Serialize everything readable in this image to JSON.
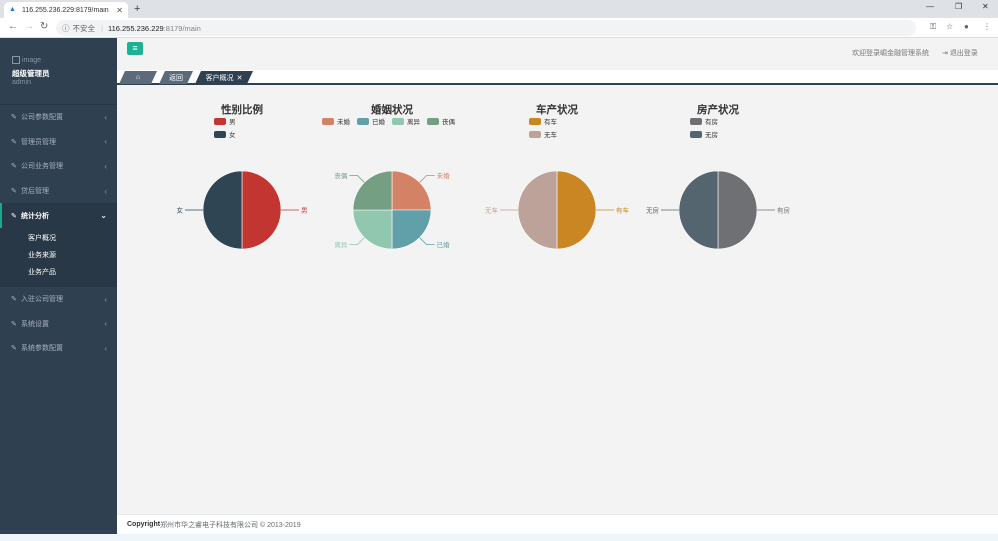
{
  "browser": {
    "tab_title": "116.255.236.229:8179/main",
    "tab_favicon": "warning-triangle-icon",
    "new_tab": "+",
    "security_text": "不安全",
    "address_host": "116.255.236.229",
    "address_path": ":8179/main"
  },
  "sidebar": {
    "image_alt": "image",
    "user_name": "超级管理员",
    "user_role": "admin",
    "menu": [
      {
        "label": "公司参数配置"
      },
      {
        "label": "管理员管理"
      },
      {
        "label": "公司业务管理"
      },
      {
        "label": "贷后管理"
      },
      {
        "label": "统计分析"
      },
      {
        "label": "入驻公司管理"
      },
      {
        "label": "系统设置"
      },
      {
        "label": "系统参数配置"
      }
    ],
    "submenu": [
      {
        "label": "客户概况"
      },
      {
        "label": "业务来源"
      },
      {
        "label": "业务产品"
      }
    ]
  },
  "header": {
    "welcome": "欢迎登录崛金融管理系统",
    "logout": "退出登录"
  },
  "page_tabs": {
    "back": "返回",
    "current": "客户概况",
    "close": "✕"
  },
  "footer": {
    "copyright_label": "Copyright",
    "copyright_text": "郑州市华之睿电子科技有限公司 © 2013-2019"
  },
  "colors": {
    "accent": "#1ab394",
    "sidebar_bg": "#2f4050"
  },
  "chart_data": [
    {
      "type": "pie",
      "title": "性别比例",
      "legend_position": "top",
      "slices": [
        {
          "name": "男",
          "value": 50,
          "color": "#c23531"
        },
        {
          "name": "女",
          "value": 50,
          "color": "#2f4554"
        }
      ]
    },
    {
      "type": "pie",
      "title": "婚姻状况",
      "legend_position": "top",
      "slices": [
        {
          "name": "未婚",
          "value": 25,
          "color": "#d48265"
        },
        {
          "name": "已婚",
          "value": 25,
          "color": "#61a0a8"
        },
        {
          "name": "离异",
          "value": 25,
          "color": "#91c7ae"
        },
        {
          "name": "丧偶",
          "value": 25,
          "color": "#749f83"
        }
      ]
    },
    {
      "type": "pie",
      "title": "车产状况",
      "legend_position": "top",
      "slices": [
        {
          "name": "有车",
          "value": 50,
          "color": "#ca8622"
        },
        {
          "name": "无车",
          "value": 50,
          "color": "#bda29a"
        }
      ]
    },
    {
      "type": "pie",
      "title": "房产状况",
      "legend_position": "top",
      "slices": [
        {
          "name": "有房",
          "value": 50,
          "color": "#6e7074"
        },
        {
          "name": "无房",
          "value": 50,
          "color": "#546570"
        }
      ]
    }
  ]
}
